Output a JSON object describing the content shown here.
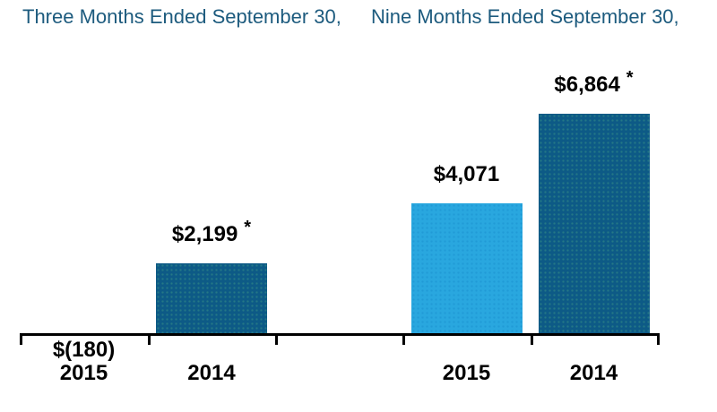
{
  "chart_data": {
    "type": "bar",
    "title": "",
    "group_titles": [
      "Three Months Ended September 30,",
      "Nine Months Ended September 30,"
    ],
    "categories": [
      "2015",
      "2014",
      "2015",
      "2014"
    ],
    "bars": [
      {
        "group": "Three Months Ended September 30,",
        "category": "2015",
        "value": -180,
        "value_label": "$(180)",
        "asterisk": false,
        "color_key": "dark_blue"
      },
      {
        "group": "Three Months Ended September 30,",
        "category": "2014",
        "value": 2199,
        "value_label": "$2,199",
        "asterisk": true,
        "color_key": "dark_blue"
      },
      {
        "group": "Nine Months Ended September 30,",
        "category": "2015",
        "value": 4071,
        "value_label": "$4,071",
        "asterisk": false,
        "color_key": "light_blue"
      },
      {
        "group": "Nine Months Ended September 30,",
        "category": "2014",
        "value": 6864,
        "value_label": "$6,864",
        "asterisk": true,
        "color_key": "dark_blue"
      }
    ],
    "footnote_symbol": "*",
    "colors": {
      "dark_blue": "#0d5a86",
      "light_blue": "#29a7df",
      "title_blue": "#1d5b7e",
      "axis": "#000000",
      "label": "#000000"
    },
    "axis": {
      "ylim": [
        0,
        6900
      ],
      "gridlines": false,
      "baseline": 0,
      "negative_values_shown_as_label_below_axis": true
    },
    "legend": {
      "shown": false
    }
  }
}
